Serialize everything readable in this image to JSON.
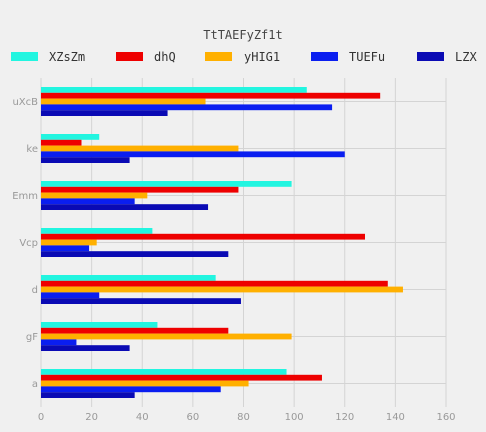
{
  "chart_data": {
    "type": "bar",
    "orientation": "horizontal",
    "title": "TtTAEFyZf1t",
    "xlabel": "",
    "ylabel": "",
    "xlim": [
      0,
      160
    ],
    "x_ticks": [
      0,
      20,
      40,
      60,
      80,
      100,
      120,
      140,
      160
    ],
    "grid": true,
    "legend_position": "top",
    "categories": [
      "uXcB",
      "ke",
      "Emm",
      "Vcp",
      "d",
      "gF",
      "a"
    ],
    "series": [
      {
        "name": "XZsZm",
        "color": "#22f5e0",
        "values": [
          105,
          23,
          99,
          44,
          69,
          46,
          97
        ]
      },
      {
        "name": "dhQ",
        "color": "#ee0000",
        "values": [
          134,
          16,
          78,
          128,
          137,
          74,
          111
        ]
      },
      {
        "name": "yHIG1",
        "color": "#ffb000",
        "values": [
          65,
          78,
          42,
          22,
          143,
          99,
          82
        ]
      },
      {
        "name": "TUEFu",
        "color": "#0a1ef0",
        "values": [
          115,
          120,
          37,
          19,
          23,
          14,
          71
        ]
      },
      {
        "name": "LZX",
        "color": "#0a0ab4",
        "values": [
          50,
          35,
          66,
          74,
          79,
          35,
          37
        ]
      }
    ]
  }
}
